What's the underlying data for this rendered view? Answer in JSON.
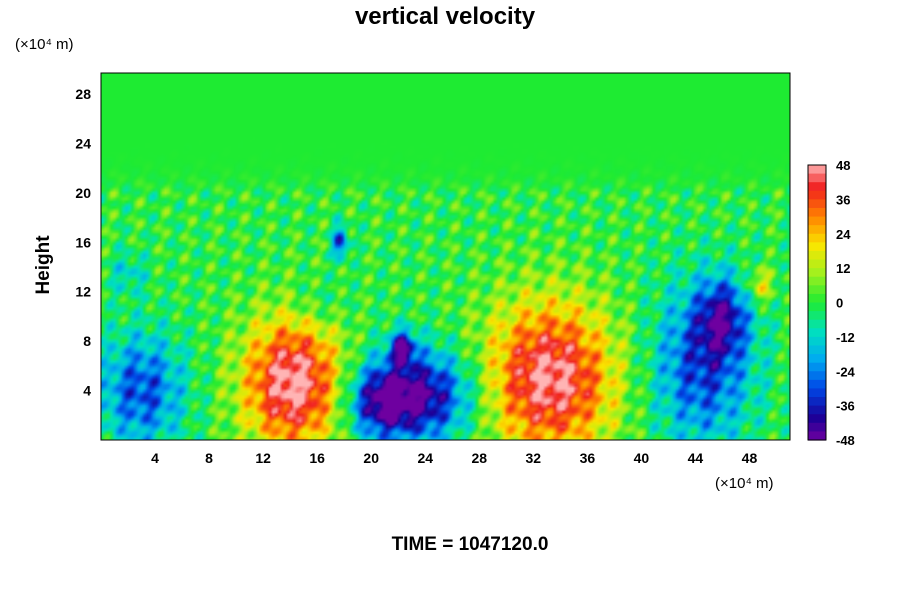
{
  "chart_data": {
    "type": "heatmap",
    "title": "vertical velocity",
    "ylabel": "Height",
    "x_unit": "(×10⁴ m)",
    "y_unit": "(×10⁴ m)",
    "x_ticks": [
      4,
      8,
      12,
      16,
      20,
      24,
      28,
      32,
      36,
      40,
      44,
      48
    ],
    "y_ticks": [
      4,
      8,
      12,
      16,
      20,
      24,
      28
    ],
    "xlim": [
      0,
      51
    ],
    "ylim": [
      0,
      29.7
    ],
    "colorbar": {
      "range": [
        -48,
        48
      ],
      "ticks": [
        48,
        36,
        24,
        12,
        0,
        -12,
        -24,
        -36,
        -48
      ]
    },
    "features": [
      {
        "x": 14.2,
        "y": 4.6,
        "amplitude": 50,
        "sx": 2.6,
        "sy": 3.8
      },
      {
        "x": 33.2,
        "y": 5.0,
        "amplitude": 48,
        "sx": 3.4,
        "sy": 4.4
      },
      {
        "x": 23.5,
        "y": 3.6,
        "amplitude": -46,
        "sx": 2.8,
        "sy": 2.6
      },
      {
        "x": 20.5,
        "y": 3.0,
        "amplitude": -28,
        "sx": 1.6,
        "sy": 2.0
      },
      {
        "x": 3.0,
        "y": 4.0,
        "amplitude": -30,
        "sx": 2.2,
        "sy": 3.2
      },
      {
        "x": 44.5,
        "y": 6.0,
        "amplitude": -32,
        "sx": 2.6,
        "sy": 4.5
      },
      {
        "x": 46.0,
        "y": 10.0,
        "amplitude": -30,
        "sx": 1.3,
        "sy": 2.2
      },
      {
        "x": 22.3,
        "y": 7.5,
        "amplitude": -40,
        "sx": 0.6,
        "sy": 0.9
      },
      {
        "x": 17.7,
        "y": 16.0,
        "amplitude": -34,
        "sx": 0.4,
        "sy": 0.9
      },
      {
        "x": 48.8,
        "y": 12.5,
        "amplitude": 20,
        "sx": 0.7,
        "sy": 1.0
      },
      {
        "x": 16.0,
        "y": 11.0,
        "amplitude": -8,
        "sx": 1.5,
        "sy": 1.5
      },
      {
        "x": 2.0,
        "y": 13.5,
        "amplitude": -12,
        "sx": 1.0,
        "sy": 1.2
      }
    ],
    "time_label": "TIME = 1047120.0"
  }
}
